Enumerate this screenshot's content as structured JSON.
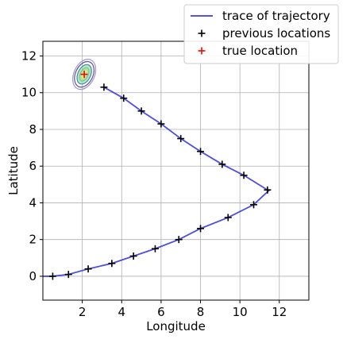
{
  "chart_data": {
    "type": "line",
    "xlabel": "Longitude",
    "ylabel": "Latitude",
    "xlim": [
      0,
      13.5
    ],
    "ylim": [
      -1.3,
      12.8
    ],
    "xticks": [
      2,
      4,
      6,
      8,
      10,
      12
    ],
    "yticks": [
      0,
      2,
      4,
      6,
      8,
      10,
      12
    ],
    "grid": true,
    "legend_position": "top-right",
    "series": [
      {
        "name": "trace of trajectory",
        "kind": "line",
        "color": "#3b3bdc",
        "x": [
          0.0,
          0.5,
          1.3,
          2.3,
          3.5,
          4.6,
          5.7,
          6.9,
          8.0,
          9.4,
          10.7,
          11.5,
          11.4,
          10.2,
          9.1,
          8.0,
          7.0,
          6.0,
          5.0,
          4.1,
          3.1
        ],
        "y": [
          0.0,
          0.0,
          0.1,
          0.4,
          0.7,
          1.1,
          1.5,
          2.0,
          2.6,
          3.2,
          3.9,
          4.7,
          4.7,
          5.5,
          6.1,
          6.8,
          7.5,
          8.3,
          9.0,
          9.7,
          10.3
        ]
      },
      {
        "name": "previous locations",
        "kind": "marker",
        "marker": "+",
        "color": "#000000",
        "x": [
          0.5,
          1.3,
          2.3,
          3.5,
          4.6,
          5.7,
          6.9,
          8.0,
          9.4,
          10.7,
          11.4,
          10.2,
          9.1,
          8.0,
          7.0,
          6.0,
          5.0,
          4.1,
          3.1
        ],
        "y": [
          0.0,
          0.1,
          0.4,
          0.7,
          1.1,
          1.5,
          2.0,
          2.6,
          3.2,
          3.9,
          4.7,
          5.5,
          6.1,
          6.8,
          7.5,
          8.3,
          9.0,
          9.7,
          10.3
        ]
      },
      {
        "name": "true location",
        "kind": "marker",
        "marker": "+",
        "color": "#ff0000",
        "x": [
          2.1
        ],
        "y": [
          11.0
        ]
      }
    ],
    "uncertainty_contours": {
      "center": [
        2.1,
        11.0
      ],
      "colors": [
        "#b9e37a",
        "#6cc9a3",
        "#3e8ea6",
        "#5a4fa0",
        "#a393c8"
      ]
    }
  }
}
